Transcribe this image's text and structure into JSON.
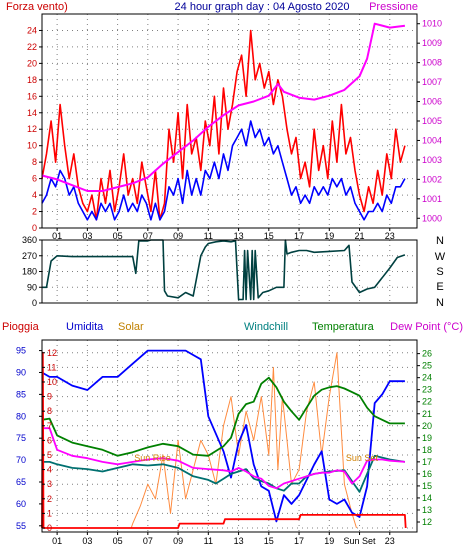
{
  "colors": {
    "frame": "#000000",
    "grid": "#808080",
    "wind_gust": "#ff0000",
    "wind_avg": "#0000ff",
    "pressure": "#ff00ff",
    "direction": "#004040",
    "rain": "#ff0000",
    "humidity": "#0000ff",
    "solar": "#ff8c40",
    "windchill": "#007070",
    "temperature": "#008000",
    "dewpoint": "#ff00ff",
    "left_axis_text": "#cc0000",
    "pressure_axis_text": "#cc00cc",
    "blue_text": "#0000cc",
    "solar_text": "#c08000",
    "teal_text": "#008080",
    "green_text": "#008000",
    "sun_label": "#d08000"
  },
  "chart_data": [
    {
      "type": "line",
      "name": "wind-pressure",
      "title": "24 hour graph day : 04 Agosto 2020",
      "left_label": "Forza vento)",
      "right_label": "Pressione",
      "xlim": [
        0,
        24.8
      ],
      "x_ticks": [
        "01",
        "03",
        "05",
        "07",
        "09",
        "11",
        "13",
        "15",
        "17",
        "19",
        "21",
        "23"
      ],
      "x_tick_positions": [
        1,
        3,
        5,
        7,
        9,
        11,
        13,
        15,
        17,
        19,
        21,
        23
      ],
      "ylim_left": [
        0,
        26
      ],
      "y_ticks_left": [
        0,
        2,
        4,
        6,
        8,
        10,
        12,
        14,
        16,
        18,
        20,
        22,
        24
      ],
      "ylim_right": [
        999.5,
        1010.5
      ],
      "y_ticks_right": [
        1000,
        1001,
        1002,
        1003,
        1004,
        1005,
        1006,
        1007,
        1008,
        1009,
        1010
      ],
      "series": [
        {
          "key": "gust",
          "axis": "left",
          "x": [
            0,
            0.3,
            0.6,
            0.9,
            1.2,
            1.5,
            1.8,
            2.1,
            2.4,
            2.7,
            3.0,
            3.3,
            3.6,
            3.9,
            4.2,
            4.5,
            4.8,
            5.1,
            5.4,
            5.7,
            6.0,
            6.3,
            6.6,
            6.9,
            7.2,
            7.5,
            7.8,
            8.1,
            8.4,
            8.7,
            9.0,
            9.3,
            9.6,
            9.9,
            10.2,
            10.5,
            10.8,
            11.1,
            11.4,
            11.7,
            12.0,
            12.3,
            12.6,
            12.9,
            13.2,
            13.5,
            13.8,
            14.1,
            14.4,
            14.7,
            15.0,
            15.3,
            15.6,
            15.9,
            16.2,
            16.5,
            16.8,
            17.1,
            17.4,
            17.7,
            18.0,
            18.3,
            18.6,
            18.9,
            19.2,
            19.5,
            19.8,
            20.1,
            20.4,
            20.7,
            21.0,
            21.3,
            21.6,
            21.9,
            22.2,
            22.5,
            22.8,
            23.1,
            23.4,
            23.7,
            24.0
          ],
          "y": [
            6,
            9,
            13,
            8,
            15,
            10,
            6,
            9,
            5,
            3,
            2,
            4,
            1,
            6,
            3,
            7,
            2,
            5,
            9,
            4,
            6,
            3,
            8,
            5,
            2,
            7,
            1,
            3,
            12,
            8,
            14,
            6,
            15,
            9,
            11,
            7,
            13,
            10,
            16,
            9,
            17,
            12,
            15,
            19,
            21,
            16,
            24,
            18,
            20,
            17,
            19,
            15,
            18,
            16,
            12,
            9,
            11,
            6,
            8,
            5,
            12,
            7,
            10,
            6,
            13,
            8,
            15,
            9,
            11,
            7,
            4,
            2,
            5,
            3,
            7,
            4,
            9,
            6,
            12,
            8,
            10
          ]
        },
        {
          "key": "average",
          "axis": "left",
          "x": [
            0,
            0.3,
            0.6,
            0.9,
            1.2,
            1.5,
            1.8,
            2.1,
            2.4,
            2.7,
            3.0,
            3.3,
            3.6,
            3.9,
            4.2,
            4.5,
            4.8,
            5.1,
            5.4,
            5.7,
            6.0,
            6.3,
            6.6,
            6.9,
            7.2,
            7.5,
            7.8,
            8.1,
            8.4,
            8.7,
            9.0,
            9.3,
            9.6,
            9.9,
            10.2,
            10.5,
            10.8,
            11.1,
            11.4,
            11.7,
            12.0,
            12.3,
            12.6,
            12.9,
            13.2,
            13.5,
            13.8,
            14.1,
            14.4,
            14.7,
            15.0,
            15.3,
            15.6,
            15.9,
            16.2,
            16.5,
            16.8,
            17.1,
            17.4,
            17.7,
            18.0,
            18.3,
            18.6,
            18.9,
            19.2,
            19.5,
            19.8,
            20.1,
            20.4,
            20.7,
            21.0,
            21.3,
            21.6,
            21.9,
            22.2,
            22.5,
            22.8,
            23.1,
            23.4,
            23.7,
            24.0
          ],
          "y": [
            3,
            4,
            6,
            5,
            7,
            6,
            4,
            5,
            3,
            2,
            1,
            2,
            1,
            3,
            2,
            3,
            1,
            2,
            4,
            2,
            3,
            2,
            4,
            3,
            1,
            3,
            1,
            2,
            5,
            4,
            6,
            3,
            7,
            4,
            6,
            4,
            7,
            6,
            8,
            6,
            9,
            7,
            10,
            11,
            12,
            10,
            13,
            11,
            12,
            10,
            11,
            9,
            10,
            8,
            6,
            4,
            5,
            3,
            4,
            3,
            5,
            4,
            5,
            4,
            6,
            5,
            6,
            4,
            5,
            3,
            2,
            1,
            2,
            2,
            3,
            2,
            4,
            3,
            5,
            5,
            6
          ]
        },
        {
          "key": "pressure",
          "axis": "right",
          "x": [
            0,
            1,
            2,
            3,
            4,
            5,
            6,
            7,
            8,
            9,
            10,
            11,
            12,
            13,
            14,
            15,
            15.6,
            16,
            17,
            18,
            19,
            20,
            21,
            21.5,
            22,
            23,
            24
          ],
          "y": [
            1002.2,
            1002.0,
            1001.7,
            1001.4,
            1001.4,
            1001.6,
            1001.8,
            1002.1,
            1002.8,
            1003.4,
            1004.0,
            1004.7,
            1005.3,
            1005.8,
            1006.0,
            1006.3,
            1006.9,
            1006.5,
            1006.2,
            1006.1,
            1006.3,
            1006.6,
            1007.3,
            1008.2,
            1010.0,
            1009.8,
            1009.9
          ]
        }
      ]
    },
    {
      "type": "line",
      "name": "wind-direction",
      "xlim": [
        0,
        24.8
      ],
      "ylim": [
        0,
        360
      ],
      "y_ticks": [
        0,
        90,
        180,
        270,
        360
      ],
      "direction_labels": [
        "N",
        "W",
        "S",
        "E",
        "N"
      ],
      "series": [
        {
          "key": "direction",
          "x": [
            0,
            0.3,
            0.6,
            1,
            2,
            3,
            4,
            5,
            6,
            6.2,
            6.4,
            7,
            7.2,
            7.5,
            8,
            8.1,
            8.3,
            9,
            9.5,
            10,
            10.5,
            10.8,
            11,
            11.5,
            12,
            12.5,
            12.8,
            13,
            13.3,
            13.4,
            13.5,
            13.6,
            13.8,
            13.9,
            14.0,
            14.1,
            14.3,
            14.6,
            15,
            15.5,
            16,
            16.1,
            16.2,
            16.5,
            17,
            17.5,
            18,
            19,
            20,
            20.3,
            20.5,
            21,
            21.5,
            22,
            23,
            23.5,
            24
          ],
          "y": [
            90,
            90,
            240,
            270,
            265,
            265,
            265,
            265,
            265,
            170,
            355,
            355,
            360,
            360,
            360,
            70,
            40,
            30,
            60,
            40,
            270,
            320,
            340,
            350,
            355,
            350,
            355,
            20,
            20,
            300,
            20,
            300,
            20,
            300,
            20,
            300,
            30,
            60,
            70,
            90,
            90,
            360,
            280,
            290,
            300,
            300,
            290,
            295,
            300,
            330,
            120,
            60,
            80,
            90,
            200,
            260,
            275
          ]
        }
      ]
    },
    {
      "type": "line",
      "name": "rain-humidity-temperature",
      "header_labels": {
        "rain": "Pioggia",
        "humidity": "Umidita",
        "solar": "Solar",
        "windchill": "Windchill",
        "temperature": "Temperatura",
        "dewpoint": "Dew Point (°C)"
      },
      "xlim": [
        0,
        24.8
      ],
      "x_ticks": [
        "01",
        "03",
        "05",
        "07",
        "09",
        "11",
        "13",
        "15",
        "17",
        "19",
        "23"
      ],
      "x_tick_positions": [
        1,
        3,
        5,
        7,
        9,
        11,
        13,
        15,
        17,
        19,
        23
      ],
      "x_ticks_extra": [
        {
          "label": "Sun Set",
          "x": 21
        }
      ],
      "ylim_rain": [
        0,
        12.6
      ],
      "y_ticks_rain": [
        0,
        1,
        2,
        3,
        4,
        5,
        6,
        7,
        8,
        9,
        10,
        11,
        12
      ],
      "ylim_humidity": [
        54.5,
        96.5
      ],
      "y_ticks_humidity": [
        55,
        60,
        65,
        70,
        75,
        80,
        85,
        90,
        95
      ],
      "ylim_temp": [
        11.5,
        26.8
      ],
      "y_ticks_temp": [
        12,
        13,
        14,
        15,
        16,
        17,
        18,
        19,
        20,
        21,
        22,
        23,
        24,
        25,
        26
      ],
      "annotations": [
        {
          "text": "Sun Rise",
          "x": 6.1,
          "y": 4.6
        },
        {
          "text": "Sun Set",
          "x": 20.1,
          "y": 4.6
        }
      ],
      "series": [
        {
          "key": "rain",
          "axis": "rain",
          "x": [
            0,
            0.05,
            0.1,
            8,
            9,
            9.1,
            12,
            12.1,
            15.5,
            15.6,
            17,
            17.1,
            24,
            24.05
          ],
          "y": [
            0,
            12,
            0,
            0,
            0,
            0.3,
            0.3,
            0.6,
            0.6,
            0.6,
            0.6,
            0.9,
            0.9,
            0
          ]
        },
        {
          "key": "humidity",
          "axis": "humidity",
          "x": [
            0,
            0.5,
            1,
            2,
            3,
            4,
            5,
            6,
            7,
            8,
            9,
            9.5,
            10,
            10.5,
            11,
            11.5,
            12,
            12.5,
            13,
            13.5,
            14,
            14.5,
            15,
            15.5,
            16,
            16.5,
            17,
            18,
            18.5,
            19,
            19.5,
            20,
            20.5,
            21,
            21.5,
            22,
            22.5,
            23,
            24
          ],
          "y": [
            90,
            89,
            89,
            87,
            86,
            89,
            89,
            92,
            95,
            95,
            95,
            95,
            94,
            93,
            80,
            76,
            72,
            66,
            74,
            78,
            69,
            64,
            63,
            56,
            62,
            60,
            62,
            69,
            72,
            61,
            60,
            61,
            58,
            57,
            64,
            83,
            85,
            88,
            88
          ]
        },
        {
          "key": "solar",
          "axis": "rain",
          "x": [
            5.9,
            6,
            6.5,
            7,
            7.5,
            8,
            8.5,
            9,
            9.5,
            10,
            10.5,
            11,
            11.5,
            12,
            12.5,
            13,
            13.5,
            14,
            14.5,
            15,
            15.3,
            15.6,
            15.9,
            16.2,
            16.5,
            17,
            17.5,
            18,
            18.5,
            19,
            19.5,
            20,
            20.5,
            20.8
          ],
          "y": [
            0,
            0.3,
            1.5,
            3,
            2,
            5,
            1,
            6,
            2,
            4,
            6,
            5,
            3,
            7,
            9,
            5,
            8,
            6,
            9,
            5,
            11,
            4,
            9,
            6,
            3,
            4,
            8,
            10,
            5,
            9,
            12,
            3,
            1,
            0
          ]
        },
        {
          "key": "windchill",
          "axis": "temp",
          "x": [
            0,
            0.5,
            1,
            2,
            3,
            4,
            5,
            6,
            7,
            8,
            9,
            10,
            11,
            11.5,
            12,
            12.5,
            13,
            13.5,
            14,
            14.5,
            15,
            15.5,
            16,
            16.5,
            17,
            17.5,
            18,
            19,
            20,
            21,
            22,
            23,
            24
          ],
          "y": [
            17,
            17,
            16.8,
            16.5,
            16.4,
            16.2,
            16.5,
            16.8,
            16.7,
            16.8,
            16.5,
            15.8,
            15.5,
            15.2,
            15.6,
            16,
            16.2,
            16.4,
            15.6,
            15.4,
            15.2,
            14.8,
            14.6,
            15.2,
            15.2,
            15.8,
            16,
            16.2,
            16.3,
            14.5,
            17.5,
            17.2,
            17
          ]
        },
        {
          "key": "temperature",
          "axis": "temp",
          "x": [
            0,
            0.5,
            1,
            2,
            3,
            4,
            5,
            6,
            7,
            8,
            9,
            10,
            11,
            12,
            12.5,
            13,
            13.5,
            14,
            14.5,
            15,
            15.5,
            16,
            16.5,
            17,
            17.5,
            18,
            18.5,
            19,
            19.5,
            20,
            20.5,
            21,
            21.5,
            22,
            22.5,
            23,
            24
          ],
          "y": [
            20.5,
            20.6,
            19.2,
            18.6,
            18.3,
            18,
            17.5,
            17.8,
            18.2,
            18.5,
            18.3,
            17.6,
            17.5,
            18.3,
            19,
            21,
            21.8,
            22,
            23.5,
            24,
            23.2,
            22,
            21.2,
            20.5,
            21.5,
            22.5,
            23,
            23.2,
            23.3,
            23.1,
            22.8,
            22.5,
            21.5,
            20.8,
            20.5,
            20.2,
            20.2
          ]
        },
        {
          "key": "dewpoint",
          "axis": "temp",
          "x": [
            0,
            0.5,
            1,
            2,
            3,
            4,
            5,
            6,
            7,
            8,
            9,
            10,
            11,
            12,
            12.5,
            13,
            13.5,
            14,
            14.5,
            15,
            15.5,
            16,
            16.5,
            17,
            17.5,
            18,
            18.5,
            19,
            19.5,
            20,
            20.5,
            21,
            21.5,
            22,
            22.5,
            23,
            24
          ],
          "y": [
            19.8,
            19.8,
            18,
            17.5,
            17.3,
            17,
            16.8,
            17,
            17.2,
            17.3,
            17.1,
            16.5,
            16.4,
            16.3,
            16.2,
            16.5,
            16.2,
            15.8,
            15.6,
            15,
            14.8,
            15.2,
            15.4,
            15.6,
            15.8,
            16,
            16.1,
            16.1,
            16.3,
            16.2,
            15.2,
            15.8,
            17.1,
            17.2,
            17.2,
            17.1,
            17
          ]
        }
      ]
    }
  ]
}
